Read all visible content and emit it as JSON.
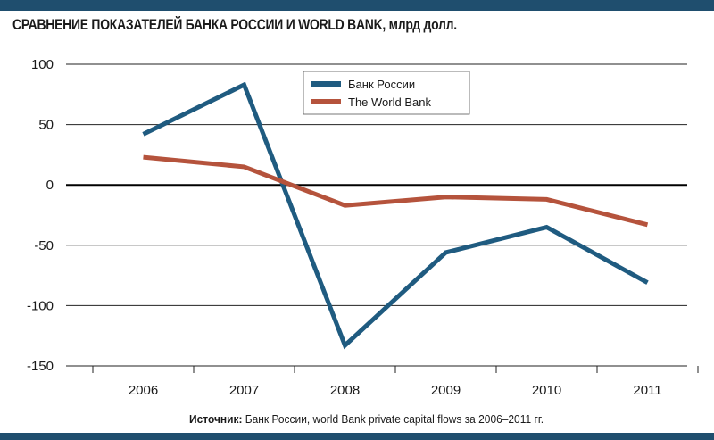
{
  "header": {
    "title": "СРАВНЕНИЕ ПОКАЗАТЕЛЕЙ БАНКА РОССИИ И WORLD BANK,",
    "unit": "млрд долл."
  },
  "footer": {
    "source_label": "Источник:",
    "source_text": "Банк России, world Bank private capital flows за 2006–2011 гг."
  },
  "colors": {
    "bar": "#1f4e6e",
    "series_bank_russia": "#1f5b80",
    "series_world_bank": "#b5533c"
  },
  "chart_data": {
    "type": "line",
    "title": "СРАВНЕНИЕ ПОКАЗАТЕЛЕЙ БАНКА РОССИИ И WORLD BANK, млрд долл.",
    "categories": [
      "2006",
      "2007",
      "2008",
      "2009",
      "2010",
      "2011"
    ],
    "ylim": [
      -150,
      100
    ],
    "yticks": [
      "100",
      "50",
      "0",
      "-50",
      "-100",
      "-150"
    ],
    "grid": true,
    "legend_position": "top-center",
    "series": [
      {
        "name": "Банк России",
        "values": [
          42,
          83,
          -133,
          -56,
          -35,
          -81
        ]
      },
      {
        "name": "The World Bank",
        "values": [
          23,
          15,
          -17,
          -10,
          -12,
          -33
        ]
      }
    ]
  }
}
